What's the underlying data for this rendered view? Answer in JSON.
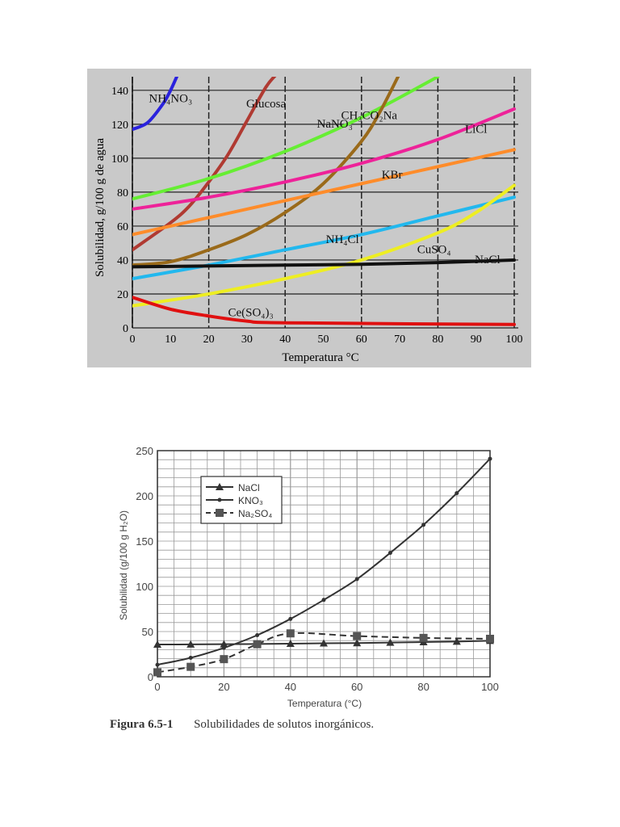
{
  "chart_data": [
    {
      "type": "line",
      "xlabel": "Temperatura °C",
      "ylabel": "Solubilidad, g/100 g de agua",
      "xlim": [
        0,
        100
      ],
      "ylim": [
        0,
        148
      ],
      "xticks": [
        0,
        10,
        20,
        30,
        40,
        50,
        60,
        70,
        80,
        90,
        100
      ],
      "yticks": [
        0,
        20,
        40,
        60,
        80,
        100,
        120,
        140
      ],
      "grid": true,
      "legend": "inline labels",
      "series": [
        {
          "name": "NH₄NO₃",
          "color": "#2a22dd",
          "x": [
            0,
            4,
            8,
            10,
            12
          ],
          "y": [
            117,
            121,
            132,
            140,
            150
          ]
        },
        {
          "name": "Glucosa",
          "color": "#b03a32",
          "x": [
            0,
            10,
            15,
            20,
            25,
            30,
            35,
            38
          ],
          "y": [
            46,
            62,
            72,
            86,
            102,
            122,
            142,
            150
          ]
        },
        {
          "name": "NaNO₃",
          "color": "#66ee33",
          "x": [
            0,
            20,
            40,
            60,
            80
          ],
          "y": [
            76,
            88,
            104,
            124,
            148
          ]
        },
        {
          "name": "CH₃CO₂Na",
          "color": "#9a6a1a",
          "x": [
            0,
            10,
            20,
            30,
            40,
            50,
            60,
            65,
            70
          ],
          "y": [
            37,
            39,
            46,
            55,
            68,
            85,
            110,
            128,
            150
          ]
        },
        {
          "name": "LiCl",
          "color": "#ee2299",
          "x": [
            0,
            20,
            40,
            60,
            80,
            100
          ],
          "y": [
            70,
            77,
            86,
            97,
            111,
            129
          ]
        },
        {
          "name": "KBr",
          "color": "#ff8c2a",
          "x": [
            0,
            20,
            40,
            60,
            80,
            100
          ],
          "y": [
            55,
            65,
            75,
            85,
            95,
            105
          ]
        },
        {
          "name": "NH₄Cl",
          "color": "#22b8ee",
          "x": [
            0,
            20,
            40,
            60,
            80,
            100
          ],
          "y": [
            29,
            37,
            46,
            55,
            66,
            77
          ]
        },
        {
          "name": "CuSO₄",
          "color": "#eeee22",
          "x": [
            0,
            20,
            40,
            60,
            80,
            90,
            100
          ],
          "y": [
            13,
            20,
            29,
            40,
            56,
            68,
            84
          ]
        },
        {
          "name": "NaCl",
          "color": "#111111",
          "x": [
            0,
            40,
            60,
            80,
            100
          ],
          "y": [
            36,
            37,
            37.5,
            38.5,
            40
          ]
        },
        {
          "name": "Ce(SO₄)₃",
          "color": "#e01010",
          "x": [
            0,
            10,
            20,
            30,
            40,
            100
          ],
          "y": [
            18,
            11,
            7,
            4,
            3,
            2
          ]
        }
      ]
    },
    {
      "type": "line",
      "xlabel": "Temperatura (°C)",
      "ylabel": "Solubilidad (g/100 g H₂O)",
      "xlim": [
        0,
        100
      ],
      "ylim": [
        0,
        250
      ],
      "xticks": [
        0,
        20,
        40,
        60,
        80,
        100
      ],
      "yticks": [
        0,
        50,
        100,
        150,
        200,
        250
      ],
      "grid": true,
      "legend": "top-left",
      "series": [
        {
          "name": "NaCl",
          "marker": "triangle",
          "dash": false,
          "color": "#333333",
          "x": [
            0,
            10,
            20,
            30,
            40,
            50,
            60,
            70,
            80,
            90,
            100
          ],
          "y": [
            35.7,
            35.8,
            36,
            36.3,
            36.6,
            37,
            37.3,
            37.8,
            38.4,
            39,
            39.8
          ]
        },
        {
          "name": "KNO₃",
          "marker": "dot",
          "dash": false,
          "color": "#333333",
          "x": [
            0,
            10,
            20,
            30,
            40,
            50,
            60,
            70,
            80,
            90,
            100
          ],
          "y": [
            13.3,
            21,
            32,
            46,
            64,
            85,
            108,
            137,
            168,
            203,
            241
          ]
        },
        {
          "name": "Na₂SO₄",
          "marker": "square",
          "dash": true,
          "color": "#333333",
          "x": [
            0,
            10,
            20,
            30,
            40,
            60,
            80,
            100
          ],
          "y": [
            5,
            11,
            19.5,
            36,
            48,
            45,
            43,
            42
          ]
        }
      ]
    }
  ],
  "caption": {
    "figure": "Figura 6.5-1",
    "text": "Solubilidades de solutos inorgánicos."
  }
}
